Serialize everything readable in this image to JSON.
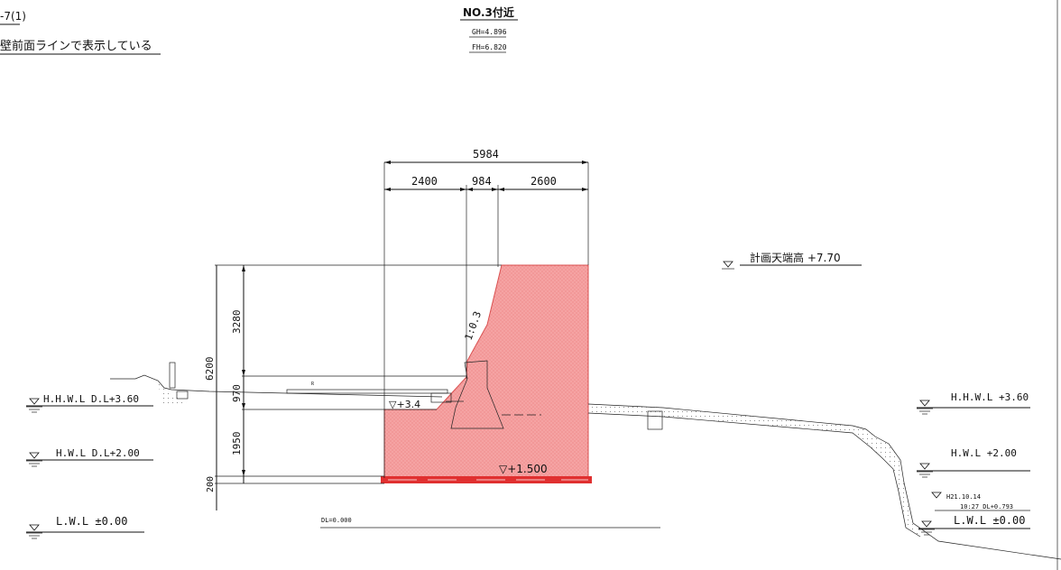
{
  "header": {
    "left_ref": "-7(1)",
    "left_note": "壁前面ラインで表示している",
    "section_title": "NO.3付近",
    "gh": "GH=4.896",
    "fh": "FH=6.820"
  },
  "dimensions": {
    "total_width": "5984",
    "seg_left": "2400",
    "seg_mid": "984",
    "seg_right": "2600",
    "total_height": "6200",
    "h_upper": "3280",
    "h_mid": "970",
    "h_lower": "1950",
    "h_base": "200",
    "slope": "1:0.3"
  },
  "water_levels_left": [
    {
      "label": "H.H.W.L  D.L+3.60"
    },
    {
      "label": "H.W.L  D.L+2.00"
    },
    {
      "label": "L.W.L  ±0.00"
    }
  ],
  "water_levels_right": {
    "design_crest": "計画天端高  +7.70",
    "hhwl": "H.H.W.L  +3.60",
    "hwl": "H.W.L  +2.00",
    "obs_date": "H21.10.14",
    "obs_time": "10:27  DL+0.793",
    "lwl": "L.W.L  ±0.00"
  },
  "annotations": {
    "level_mid": "▽+3.4",
    "level_base": "▽+1.500",
    "datum": "DL=0.000"
  },
  "colors": {
    "structure_fill": "#f28c8c",
    "footing_red": "#e03030"
  }
}
